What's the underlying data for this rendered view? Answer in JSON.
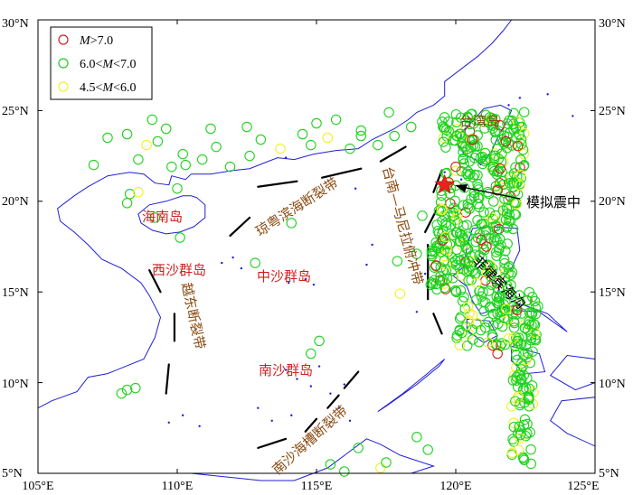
{
  "colors": {
    "coast": "#1f1fd6",
    "mag_gt7": "#d21f1f",
    "mag_6_7": "#1ed21e",
    "mag_45_6": "#f0f02a",
    "fault": "#000000",
    "label_red": "#d21f1f",
    "label_brown": "#8a4b12"
  },
  "axes": {
    "lon_ticks": [
      "105°E",
      "110°E",
      "115°E",
      "120°E",
      "125°E"
    ],
    "lat_ticks": [
      "5°N",
      "10°N",
      "15°N",
      "20°N",
      "25°N",
      "30°N"
    ]
  },
  "legend": {
    "items": [
      {
        "label_pre": "",
        "label_m": "M",
        "label_post": ">7.0",
        "color_key": "mag_gt7"
      },
      {
        "label_pre": "6.0<",
        "label_m": "M",
        "label_post": "<7.0",
        "color_key": "mag_6_7"
      },
      {
        "label_pre": "4.5<",
        "label_m": "M",
        "label_post": "<6.0",
        "color_key": "mag_45_6"
      }
    ]
  },
  "places": {
    "taiwan": "台湾岛",
    "hainan": "海南岛",
    "xisha": "西沙群岛",
    "zhongsha": "中沙群岛",
    "nansha": "南沙群岛"
  },
  "faults": {
    "qiongyue": "琼粤滨海断裂带",
    "tainan_manila": "台南—马尼拉俯冲带",
    "yuedong": "越东断裂带",
    "nansha_trough": "南沙海槽断裂带",
    "philippine": "菲律宾海沟"
  },
  "simulated_source": {
    "label": "模拟震中",
    "lon": 119.6,
    "lat": 20.9
  },
  "map_extent": {
    "lon": [
      105,
      125
    ],
    "lat": [
      5,
      30
    ]
  }
}
